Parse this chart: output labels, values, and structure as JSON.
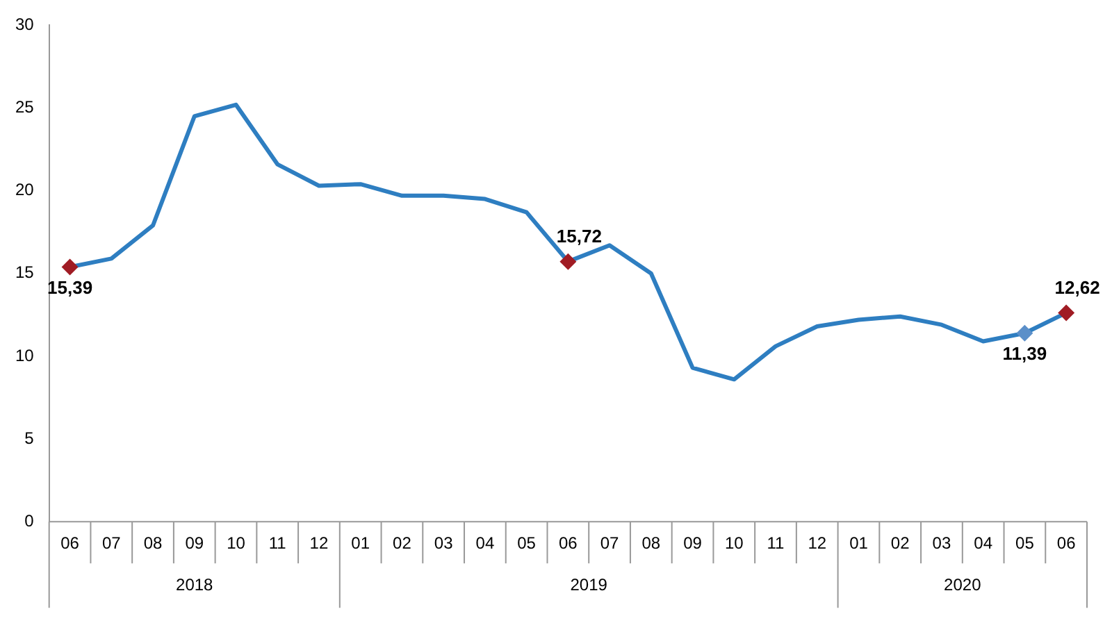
{
  "chart_data": {
    "type": "line",
    "categories": [
      "06",
      "07",
      "08",
      "09",
      "10",
      "11",
      "12",
      "01",
      "02",
      "03",
      "04",
      "05",
      "06",
      "07",
      "08",
      "09",
      "10",
      "11",
      "12",
      "01",
      "02",
      "03",
      "04",
      "05",
      "06"
    ],
    "annotations": [
      "2018",
      "2019",
      "2020"
    ],
    "series": [
      {
        "color": "#2e7ec1",
        "values": [
          15.39,
          15.9,
          17.9,
          24.5,
          25.2,
          21.6,
          20.3,
          20.4,
          19.7,
          19.7,
          19.5,
          18.7,
          15.72,
          16.7,
          15.0,
          9.3,
          8.6,
          10.6,
          11.8,
          12.2,
          12.4,
          11.9,
          10.9,
          11.39,
          12.62
        ],
        "value_labels": [
          "15,39",
          null,
          null,
          null,
          null,
          null,
          null,
          null,
          null,
          null,
          null,
          null,
          "15,72",
          null,
          null,
          null,
          null,
          null,
          null,
          null,
          null,
          null,
          null,
          "11,39",
          "12,62"
        ],
        "colors": [
          "#a01c24",
          "#2e7ec1",
          "#2e7ec1",
          "#2e7ec1",
          "#2e7ec1",
          "#2e7ec1",
          "#2e7ec1",
          "#2e7ec1",
          "#2e7ec1",
          "#2e7ec1",
          "#2e7ec1",
          "#2e7ec1",
          "#a01c24",
          "#2e7ec1",
          "#2e7ec1",
          "#2e7ec1",
          "#2e7ec1",
          "#2e7ec1",
          "#2e7ec1",
          "#2e7ec1",
          "#2e7ec1",
          "#2e7ec1",
          "#2e7ec1",
          "#5b8fc9",
          "#a01c24"
        ]
      }
    ],
    "ylim": [
      0,
      30
    ],
    "yticks": [
      0,
      5,
      10,
      15,
      20,
      25,
      30
    ],
    "grid": false,
    "legend": false,
    "line_style": "solid"
  }
}
